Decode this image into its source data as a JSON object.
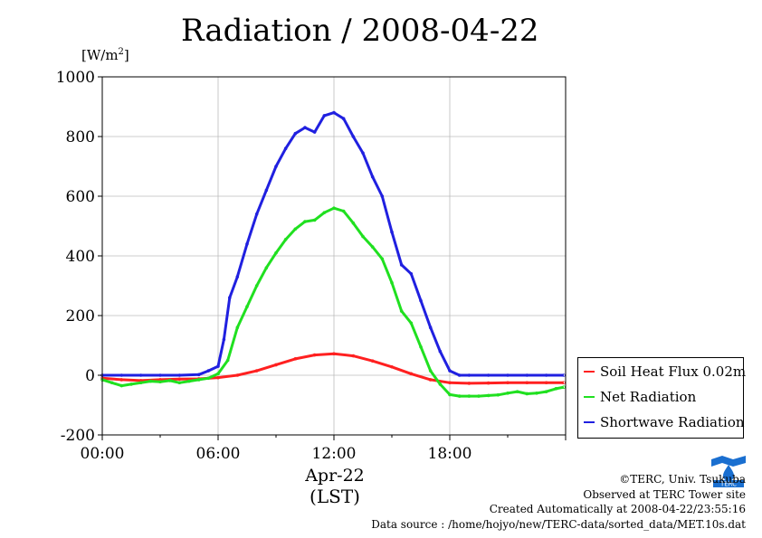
{
  "page": {
    "title": "Radiation / 2008-04-22",
    "unit_label": "[W/m",
    "unit_sup": "2",
    "unit_close": "]",
    "x_sublabel": "Apr-22",
    "x_sublabel2": "(LST)",
    "credits": [
      "©TERC, Univ. Tsukuba",
      "Observed at TERC Tower site",
      "Created Automatically at 2008-04-22/23:55:16",
      "Data source : /home/hojyo/new/TERC-data/sorted_data/MET.10s.dat"
    ],
    "logo_text": "TERC"
  },
  "colors": {
    "soil": "#ff2020",
    "net": "#20e020",
    "shortwave": "#2020e0"
  },
  "chart_data": {
    "type": "line",
    "title": "Radiation / 2008-04-22",
    "ylabel": "[W/m2]",
    "xlabel": "Apr-22 (LST)",
    "ylim": [
      -200,
      1000
    ],
    "xlim_hours": [
      0,
      24
    ],
    "yticks": [
      -200,
      0,
      200,
      400,
      600,
      800,
      1000
    ],
    "ytick_labels": [
      "-200",
      "0",
      "200",
      "400",
      "600",
      "800",
      "1000"
    ],
    "xticks_hours": [
      0,
      6,
      12,
      18
    ],
    "xtick_labels": [
      "00:00",
      "06:00",
      "12:00",
      "18:00"
    ],
    "grid": true,
    "legend_position": "bottom-right",
    "series": [
      {
        "name": "Soil Heat Flux 0.02m",
        "color_key": "soil",
        "x": [
          0,
          1,
          2,
          3,
          4,
          5,
          6,
          7,
          8,
          9,
          10,
          11,
          12,
          13,
          14,
          15,
          16,
          17,
          18,
          19,
          20,
          21,
          22,
          23,
          23.9
        ],
        "y": [
          -10,
          -15,
          -18,
          -15,
          -13,
          -12,
          -8,
          0,
          15,
          35,
          55,
          68,
          72,
          65,
          48,
          28,
          5,
          -15,
          -25,
          -27,
          -26,
          -25,
          -25,
          -25,
          -25
        ]
      },
      {
        "name": "Net Radiation",
        "color_key": "net",
        "x": [
          0,
          0.5,
          1,
          1.5,
          2,
          2.5,
          3,
          3.5,
          4,
          4.5,
          5,
          5.5,
          6,
          6.5,
          7,
          7.5,
          8,
          8.5,
          9,
          9.5,
          10,
          10.5,
          11,
          11.5,
          12,
          12.5,
          13,
          13.5,
          14,
          14.5,
          15,
          15.5,
          16,
          16.5,
          17,
          17.5,
          18,
          18.5,
          19,
          19.5,
          20,
          20.5,
          21,
          21.5,
          22,
          22.5,
          23,
          23.5,
          23.9
        ],
        "y": [
          -15,
          -25,
          -35,
          -30,
          -25,
          -20,
          -22,
          -18,
          -25,
          -20,
          -15,
          -10,
          5,
          50,
          160,
          230,
          300,
          360,
          410,
          455,
          490,
          515,
          520,
          545,
          560,
          550,
          510,
          465,
          430,
          390,
          310,
          215,
          175,
          95,
          15,
          -30,
          -65,
          -70,
          -70,
          -70,
          -68,
          -66,
          -60,
          -55,
          -62,
          -60,
          -55,
          -45,
          -40
        ]
      },
      {
        "name": "Shortwave Radiation",
        "color_key": "shortwave",
        "x": [
          0,
          1,
          2,
          3,
          4,
          5,
          5.5,
          6,
          6.3,
          6.6,
          7,
          7.5,
          8,
          8.5,
          9,
          9.5,
          10,
          10.5,
          11,
          11.5,
          12,
          12.5,
          13,
          13.5,
          14,
          14.5,
          15,
          15.5,
          16,
          16.5,
          17,
          17.5,
          18,
          18.5,
          19,
          20,
          21,
          22,
          23,
          23.9
        ],
        "y": [
          0,
          0,
          0,
          0,
          0,
          2,
          15,
          30,
          120,
          260,
          330,
          440,
          540,
          620,
          700,
          760,
          810,
          830,
          815,
          870,
          880,
          860,
          800,
          745,
          665,
          600,
          480,
          370,
          340,
          250,
          160,
          80,
          15,
          0,
          0,
          0,
          0,
          0,
          0,
          0
        ]
      }
    ]
  }
}
